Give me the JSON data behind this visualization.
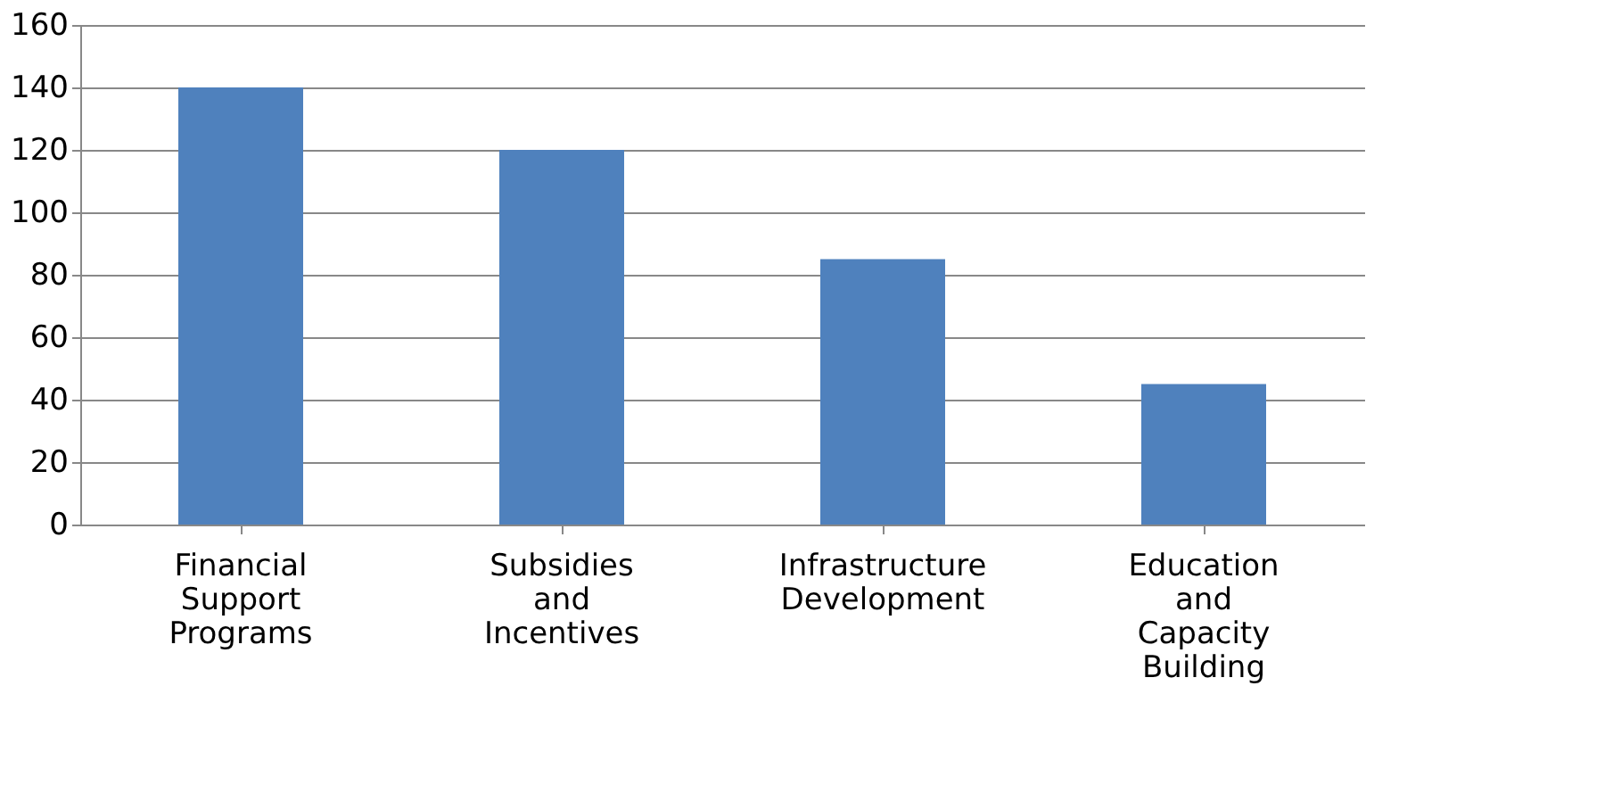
{
  "chart_data": {
    "type": "bar",
    "categories": [
      "Financial Support Programs",
      "Subsidies and Incentives",
      "Infrastructure Development",
      "Education and Capacity Building"
    ],
    "values": [
      140,
      120,
      85,
      45
    ],
    "color": "#4f81bd",
    "ylim": [
      0,
      160
    ],
    "yticks": [
      0,
      20,
      40,
      60,
      80,
      100,
      120,
      140,
      160
    ],
    "grid": "y"
  }
}
